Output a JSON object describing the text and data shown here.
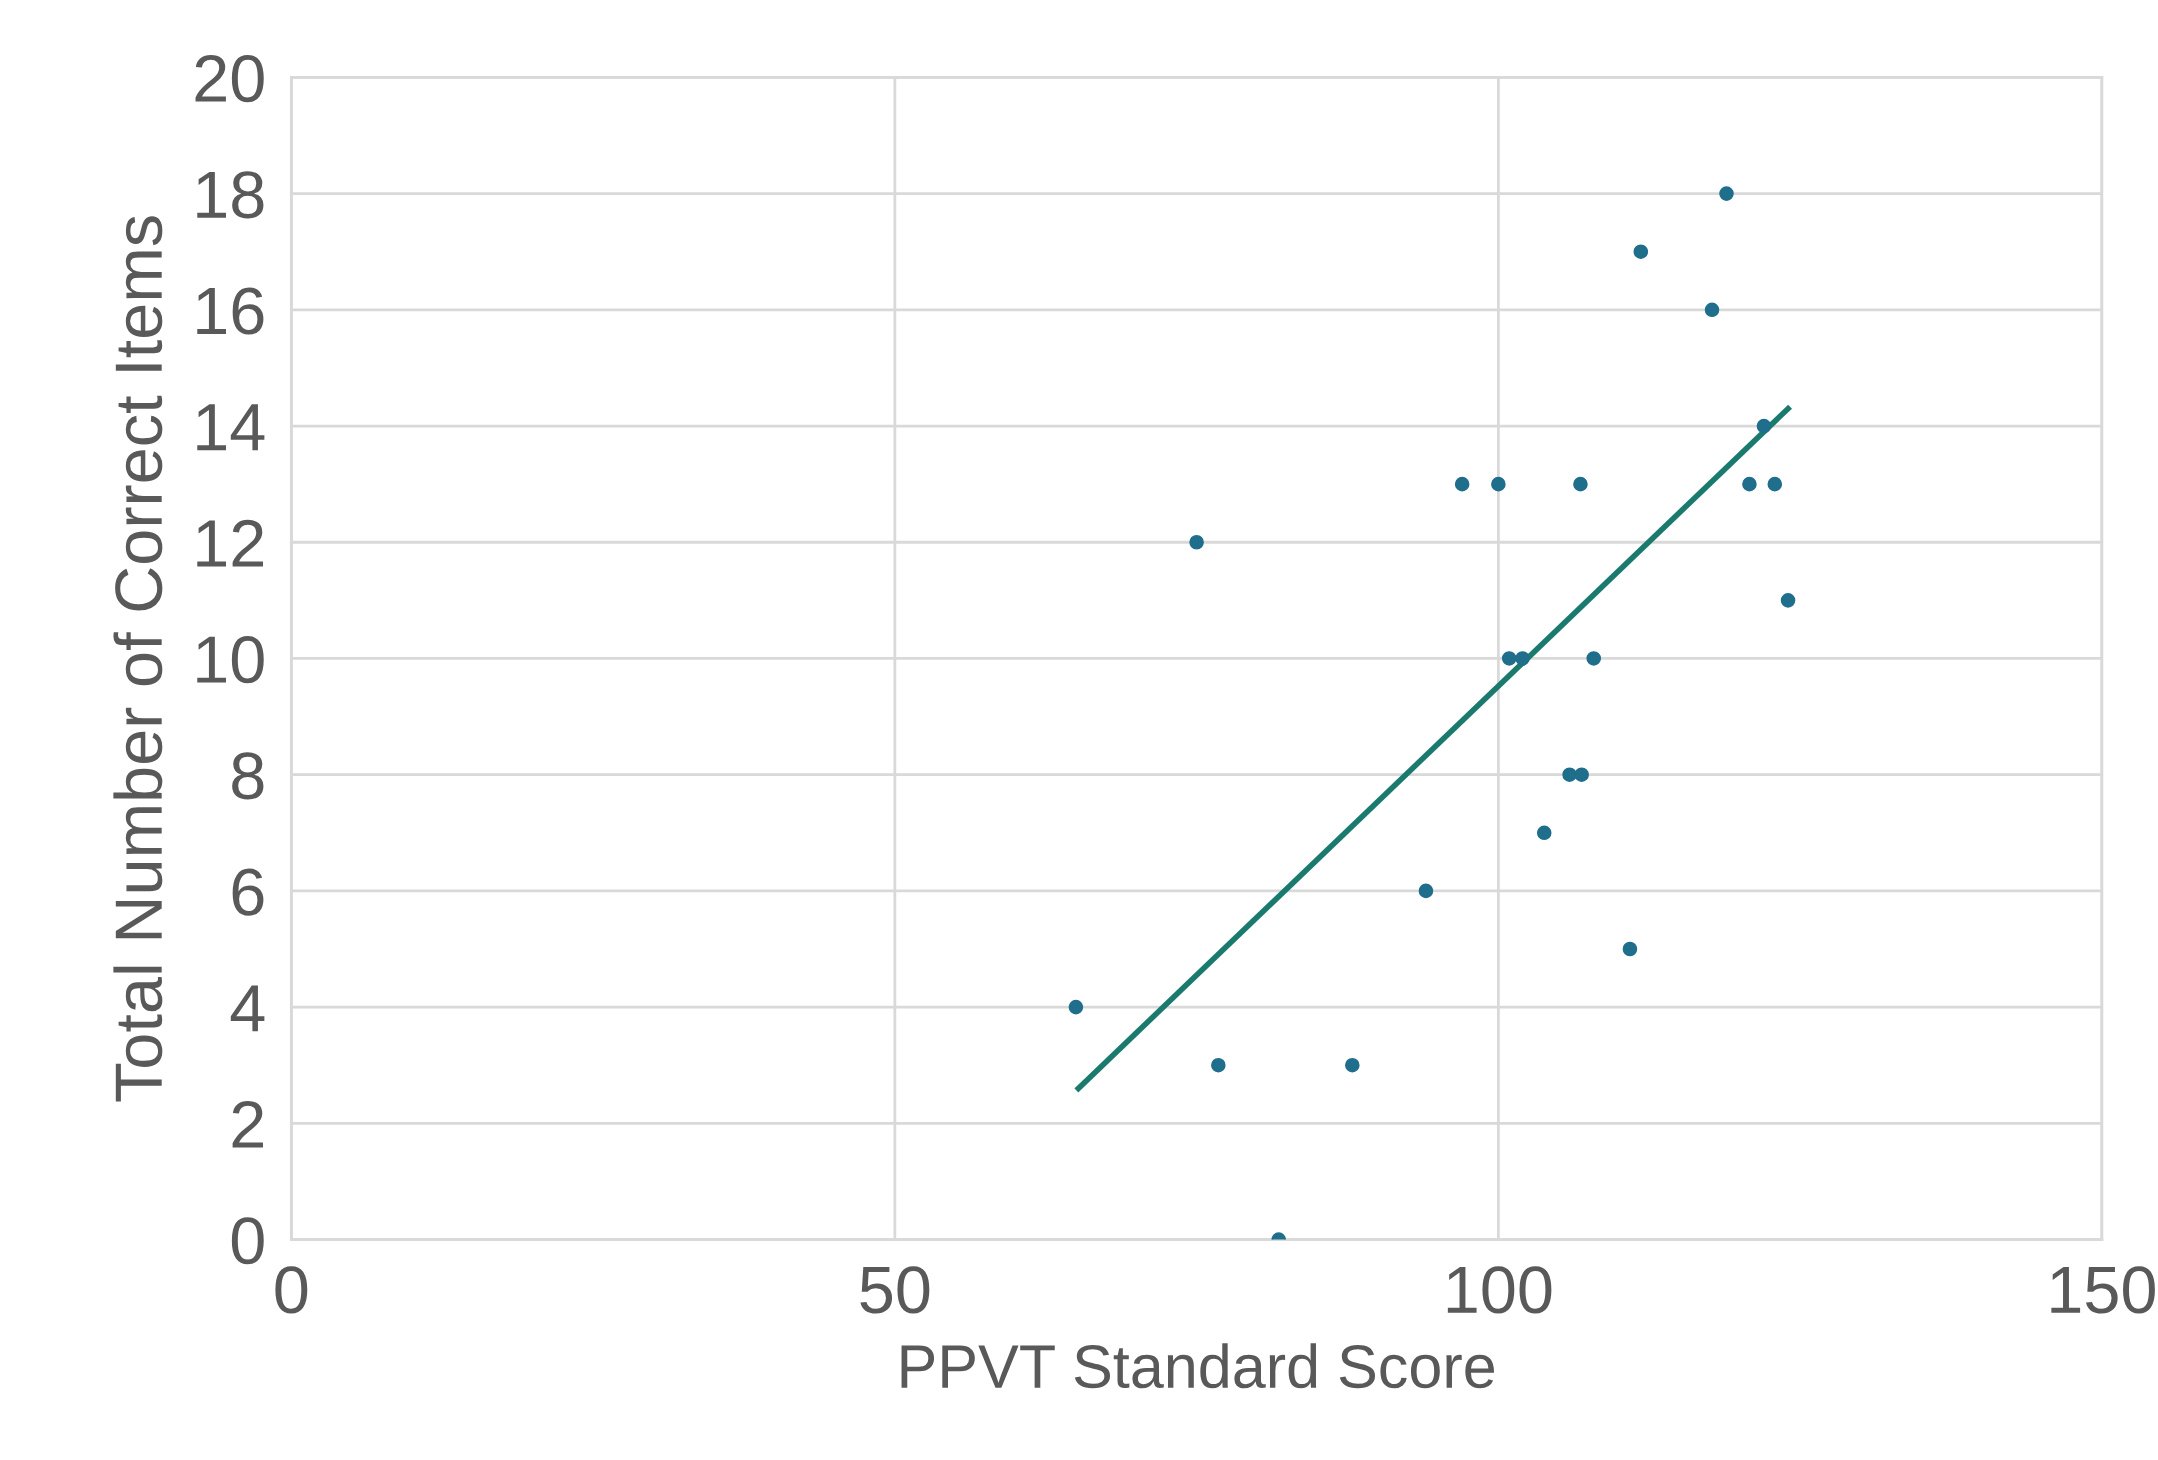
{
  "chart_data": {
    "type": "scatter",
    "xlabel": "PPVT Standard Score",
    "ylabel": "Total Number of Correct Items",
    "xlim": [
      0,
      150
    ],
    "xticks": [
      0,
      50,
      100,
      150
    ],
    "ylim": [
      0,
      20
    ],
    "yticks": [
      0,
      2,
      4,
      6,
      8,
      10,
      12,
      14,
      16,
      18,
      20
    ],
    "grid": true,
    "series": [
      {
        "marker": "circle",
        "color": "#1f6e8c",
        "x": [
          65,
          75,
          76.8,
          81.8,
          87.9,
          94,
          97,
          100,
          100.9,
          102,
          103.8,
          105.9,
          106.9,
          106.8,
          107.9,
          110.9,
          111.8,
          117.7,
          118.9,
          120.8,
          122,
          122.9,
          124
        ],
        "values": [
          4,
          12,
          3,
          0,
          3,
          6,
          13,
          13,
          10,
          10,
          7,
          8,
          8,
          13,
          10,
          5,
          17,
          16,
          18,
          13,
          14,
          13,
          11
        ]
      },
      {
        "type": "line",
        "marker": "none",
        "color": "#1a7a6e",
        "x": [
          65.2,
          124
        ],
        "values": [
          2.6,
          14.3
        ]
      }
    ]
  }
}
